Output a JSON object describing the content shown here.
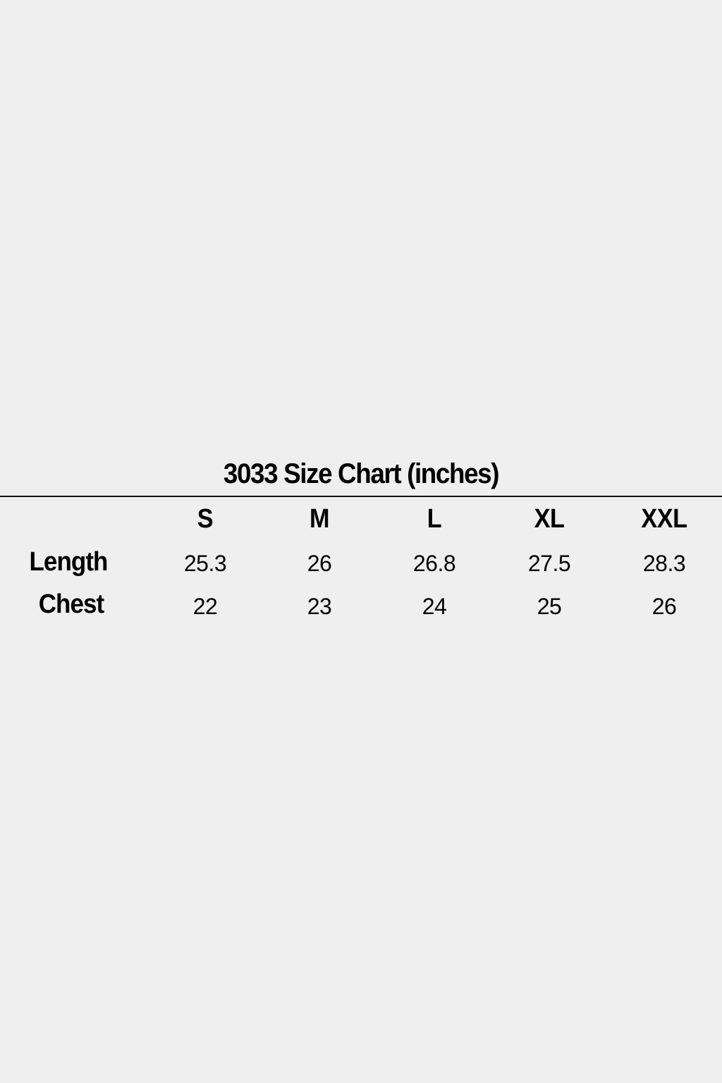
{
  "title": "3033 Size Chart (inches)",
  "table": {
    "columns": [
      "S",
      "M",
      "L",
      "XL",
      "XXL"
    ],
    "rows": [
      {
        "label": "Length",
        "values": [
          "25.3",
          "26",
          "26.8",
          "27.5",
          "28.3"
        ]
      },
      {
        "label": "Chest",
        "values": [
          "22",
          "23",
          "24",
          "25",
          "26"
        ]
      }
    ]
  }
}
